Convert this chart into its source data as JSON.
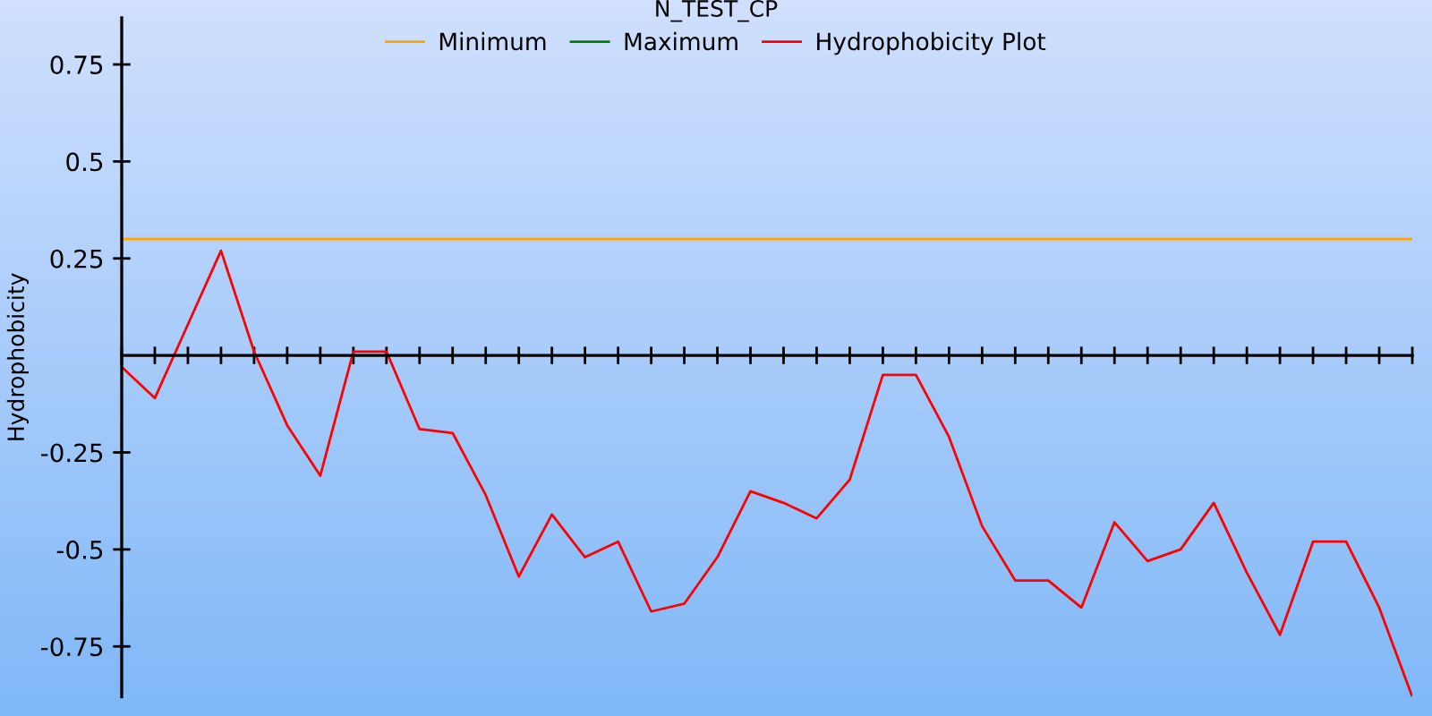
{
  "chart_data": {
    "type": "line",
    "title": "N_TEST_CP",
    "ylabel": "Hydrophobicity",
    "categories": [
      null,
      null,
      null,
      null,
      null,
      null,
      null,
      null,
      null,
      null,
      null,
      null,
      null,
      null,
      null,
      null,
      null,
      null,
      null,
      null,
      null,
      null,
      null,
      null,
      null,
      null,
      null,
      null,
      null,
      null,
      null,
      null,
      null,
      null,
      null,
      null,
      null,
      null,
      null,
      null
    ],
    "series": [
      {
        "name": "Minimum",
        "color": "#ffa500",
        "values": [
          0.3,
          0.3,
          0.3,
          0.3,
          0.3,
          0.3,
          0.3,
          0.3,
          0.3,
          0.3,
          0.3,
          0.3,
          0.3,
          0.3,
          0.3,
          0.3,
          0.3,
          0.3,
          0.3,
          0.3,
          0.3,
          0.3,
          0.3,
          0.3,
          0.3,
          0.3,
          0.3,
          0.3,
          0.3,
          0.3,
          0.3,
          0.3,
          0.3,
          0.3,
          0.3,
          0.3,
          0.3,
          0.3,
          0.3,
          0.3
        ]
      },
      {
        "name": "Maximum",
        "color": "#008000",
        "values": [
          null,
          null,
          null,
          null,
          null,
          null,
          null,
          null,
          null,
          null,
          null,
          null,
          null,
          null,
          null,
          null,
          null,
          null,
          null,
          null,
          null,
          null,
          null,
          null,
          null,
          null,
          null,
          null,
          null,
          null,
          null,
          null,
          null,
          null,
          null,
          null,
          null,
          null,
          null,
          null
        ]
      },
      {
        "name": "Hydrophobicity Plot",
        "color": "#ff0000",
        "values": [
          -0.03,
          -0.11,
          0.08,
          0.27,
          0.01,
          -0.18,
          -0.31,
          0.01,
          0.01,
          -0.19,
          -0.2,
          -0.36,
          -0.57,
          -0.41,
          -0.52,
          -0.48,
          -0.66,
          -0.64,
          -0.52,
          -0.35,
          -0.38,
          -0.42,
          -0.32,
          -0.05,
          -0.05,
          -0.21,
          -0.44,
          -0.58,
          -0.58,
          -0.65,
          -0.43,
          -0.53,
          -0.5,
          -0.38,
          -0.56,
          -0.72,
          -0.48,
          -0.48,
          -0.65,
          -0.88
        ]
      }
    ],
    "ylim": [
      -0.88,
      0.87
    ],
    "yticks": [
      0.75,
      0.5,
      0.25,
      -0.25,
      -0.5,
      -0.75
    ],
    "legend": "top"
  }
}
